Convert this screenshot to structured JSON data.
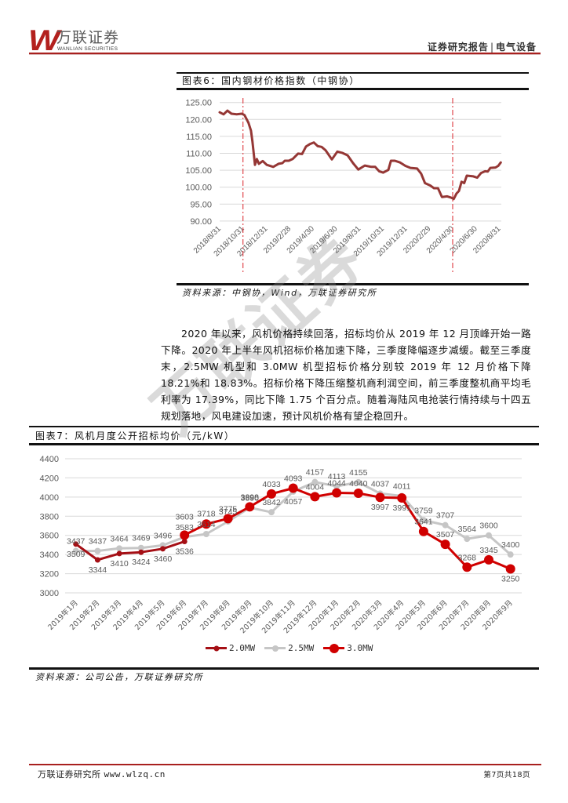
{
  "header": {
    "logo_mark": "W",
    "logo_cn": "万联证券",
    "logo_en": "WANLIAN SECURITIES",
    "report_type": "证券研究报告",
    "divider": "|",
    "sector": "电气设备"
  },
  "figure6": {
    "title": "图表6：国内钢材价格指数（中钢协）",
    "source": "资料来源：中钢协，Wind，万联证券研究所"
  },
  "paragraph": {
    "text": "2020 年以来，风机价格持续回落，招标均价从 2019 年 12 月顶峰开始一路下降。2020 年上半年风机招标价格加速下降，三季度降幅逐步减缓。截至三季度末，2.5MW 机型和 3.0MW 机型招标价格分别较 2019 年 12 月价格下降 18.21%和 18.83%。招标价格下降压缩整机商利润空间，前三季度整机商平均毛利率为 17.39%，同比下降 1.75 个百分点。随着海陆风电抢装行情持续与十四五规划落地，风电建设加速，预计风机价格有望企稳回升。"
  },
  "figure7": {
    "title": "图表7：风机月度公开招标均价（元/kW）",
    "source": "资料来源：公司公告，万联证券研究所"
  },
  "footer": {
    "org": "万联证券研究所",
    "url": "www.wlzq.cn",
    "page": "第7页共18页"
  },
  "watermark": {
    "text": "万联证券"
  },
  "colors": {
    "brand_red": "#A8201E",
    "steel_line": "#953735",
    "marker_dashed": "#E0474C"
  },
  "chart_data": [
    {
      "type": "line",
      "title": "国内钢材价格指数（中钢协）",
      "xlabel": "",
      "ylabel": "",
      "ylim": [
        90,
        125
      ],
      "ystep": 5,
      "grid": true,
      "legend": "none",
      "x_unit": "months since 2018/8/31",
      "x_tick_labels": [
        "2018/8/31",
        "2018/10/31",
        "2018/12/31",
        "2019/2/28",
        "2019/4/30",
        "2019/6/30",
        "2019/8/31",
        "2019/10/31",
        "2019/12/31",
        "2020/2/29",
        "2020/4/30",
        "2020/6/30",
        "2020/8/31"
      ],
      "x_tick_step_months": 2,
      "vertical_markers": [
        "2018/10/31",
        "2020/4/30"
      ],
      "marker_color": "#E0474C",
      "series": [
        {
          "name": "国内钢材价格指数",
          "color": "#953735",
          "x": [
            0,
            0.34,
            0.67,
            1.01,
            1.46,
            1.89,
            2.13,
            2.47,
            2.69,
            2.81,
            3.03,
            3.19,
            3.37,
            3.7,
            4.04,
            4.6,
            5.05,
            5.39,
            5.59,
            5.93,
            6.26,
            6.73,
            7.07,
            7.41,
            7.74,
            8.08,
            8.42,
            8.75,
            9.09,
            9.63,
            10.1,
            10.55,
            10.98,
            11.45,
            11.9,
            12.46,
            13.02,
            13.35,
            13.69,
            14.03,
            14.48,
            14.7,
            15.04,
            15.49,
            15.94,
            16.38,
            16.95,
            17.29,
            17.62,
            18.07,
            18.4,
            18.74,
            19.08,
            19.53,
            19.87,
            20.09,
            20.32,
            20.54,
            20.76,
            20.99,
            21.21,
            21.77,
            22.11,
            22.44,
            22.78,
            23.01,
            23.23,
            23.68,
            23.91,
            24.13
          ],
          "values": [
            122.1,
            121.5,
            122.6,
            121.7,
            121.5,
            121.7,
            121.3,
            119.0,
            116.7,
            113.6,
            106.6,
            108.3,
            106.9,
            107.7,
            106.6,
            106.0,
            106.9,
            107.1,
            107.8,
            107.8,
            108.3,
            109.9,
            109.8,
            112.0,
            112.7,
            113.2,
            112.1,
            111.9,
            110.9,
            108.2,
            110.5,
            110.1,
            109.4,
            107.1,
            105.2,
            106.4,
            106.0,
            106.0,
            104.7,
            104.3,
            105.1,
            107.8,
            107.8,
            107.3,
            106.3,
            105.7,
            105.5,
            104.0,
            101.2,
            100.5,
            99.7,
            99.7,
            97.1,
            97.3,
            96.9,
            96.5,
            98.1,
            98.9,
            101.6,
            101.2,
            103.4,
            103.2,
            102.8,
            104.2,
            104.7,
            104.6,
            105.7,
            105.8,
            106.3,
            107.3
          ]
        }
      ]
    },
    {
      "type": "line",
      "title": "风机月度公开招标均价（元/kW）",
      "xlabel": "",
      "ylabel": "元/kW",
      "ylim": [
        3000,
        4400
      ],
      "ystep": 200,
      "grid": true,
      "legend": "bottom",
      "categories": [
        "2019年1月",
        "2019年2月",
        "2019年3月",
        "2019年4月",
        "2019年5月",
        "2019年6月",
        "2019年7月",
        "2019年8月",
        "2019年9月",
        "2019年10月",
        "2019年11月",
        "2019年12月",
        "2020年1月",
        "2020年2月",
        "2020年3月",
        "2020年4月",
        "2020年5月",
        "2020年6月",
        "2020年7月",
        "2020年8月",
        "2020年9月"
      ],
      "series": [
        {
          "name": "2.0MW",
          "color": "#A50F15",
          "marker_r": 3.5,
          "values": [
            3509,
            3344,
            3410,
            3424,
            3460,
            3536,
            null,
            null,
            null,
            null,
            null,
            null,
            null,
            null,
            null,
            null,
            null,
            null,
            null,
            null,
            null
          ],
          "label_dy": [
            16,
            16,
            16,
            16,
            16,
            16,
            null,
            null,
            null,
            null,
            null,
            null,
            null,
            null,
            null,
            null,
            null,
            null,
            null,
            null,
            null
          ]
        },
        {
          "name": "2.5MW",
          "color": "#C6C6C6",
          "marker_r": 4,
          "values": [
            3437,
            3437,
            3464,
            3469,
            3496,
            3583,
            3614,
            3745,
            3890,
            3842,
            4057,
            4157,
            4113,
            4155,
            4037,
            4011,
            3759,
            3707,
            3564,
            3600,
            3400
          ],
          "label_dy": [
            -9,
            -9,
            -9,
            -9,
            -9,
            -9,
            -9,
            -9,
            -9,
            -9,
            16,
            -9,
            -9,
            -9,
            -9,
            -9,
            -9,
            -9,
            -9,
            -9,
            -9
          ]
        },
        {
          "name": "3.0MW",
          "color": "#D00000",
          "marker_r": 6,
          "values": [
            null,
            null,
            null,
            null,
            null,
            3603,
            3718,
            3775,
            3898,
            4033,
            4093,
            4004,
            4044,
            4040,
            3997,
            3991,
            3641,
            3507,
            3268,
            3345,
            3250
          ],
          "label_dy": [
            null,
            null,
            null,
            null,
            null,
            -20,
            -10,
            -9,
            -9,
            -9,
            -9,
            -9,
            -9,
            -9,
            16,
            16,
            -9,
            -9,
            -9,
            -9,
            16
          ]
        }
      ]
    }
  ]
}
